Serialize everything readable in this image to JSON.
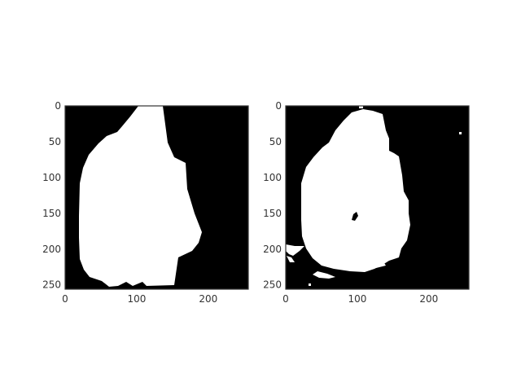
{
  "figure": {
    "background": "#ffffff",
    "frame_color": "#333333",
    "mask_foreground": "#ffffff",
    "mask_background": "#000000"
  },
  "panels": [
    {
      "id": "left-mask",
      "x_ticks": [
        "0",
        "100",
        "200"
      ],
      "y_ticks": [
        "0",
        "50",
        "100",
        "150",
        "200",
        "250"
      ],
      "x_tick_values": [
        0,
        100,
        200
      ],
      "y_tick_values": [
        0,
        50,
        100,
        150,
        200,
        250
      ],
      "image_extent": [
        256,
        256
      ]
    },
    {
      "id": "right-mask",
      "x_ticks": [
        "0",
        "100",
        "200"
      ],
      "y_ticks": [
        "0",
        "50",
        "100",
        "150",
        "200",
        "250"
      ],
      "x_tick_values": [
        0,
        100,
        200
      ],
      "y_tick_values": [
        0,
        50,
        100,
        150,
        200,
        250
      ],
      "image_extent": [
        256,
        256
      ]
    }
  ]
}
